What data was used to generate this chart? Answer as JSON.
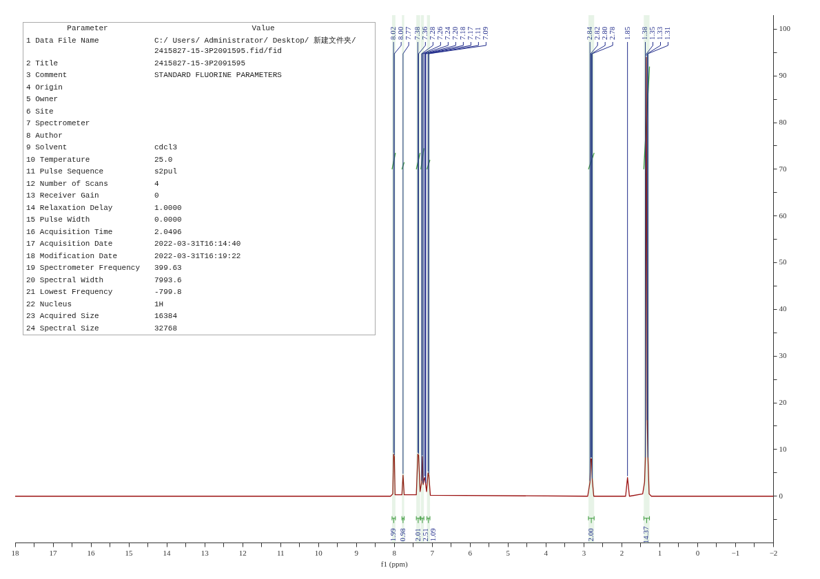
{
  "chart_data": [
    {
      "type": "other",
      "annotations": [
        "Parameter",
        "Value",
        "1 Data File Name",
        "C:/ Users/ Administrator/ Desktop/ 新建文件夹/ 2415827-15-3P2091595.fid/fid",
        "2 Title",
        "2415827-15-3P2091595",
        "3 Comment",
        "STANDARD FLUORINE PARAMETERS",
        "4 Origin",
        null,
        "5 Owner",
        null,
        "6 Site",
        null,
        "7 Spectrometer",
        null,
        "8 Author",
        null,
        "9 Solvent",
        "cdcl3",
        "10 Temperature",
        "25.0",
        "11 Pulse Sequence",
        "s2pul",
        "12 Number of Scans",
        "4",
        "13 Receiver Gain",
        "0",
        "14 Relaxation Delay",
        "1.0000",
        "15 Pulse Width",
        "0.0000",
        "16 Acquisition Time",
        "2.0496",
        "17 Acquisition Date",
        "2022-03-31T16:14:40",
        "18 Modification Date",
        "2022-03-31T16:19:22",
        "19 Spectrometer Frequency",
        "399.63",
        "20 Spectral Width",
        "7993.6",
        "21 Lowest Frequency",
        "-799.8",
        "22 Nucleus",
        "1H",
        "23 Acquired Size",
        "16384",
        "24 Spectral Size",
        "32768"
      ]
    },
    {
      "type": "line",
      "xlabel": "f1 (ppm)",
      "xlim": [
        18,
        -2
      ],
      "xticks": [
        18,
        {
          "value": 17.5,
          "label": null
        },
        17,
        {
          "value": 16.5,
          "label": null
        },
        16,
        {
          "value": 15.5,
          "label": null
        },
        15,
        {
          "value": 14.5,
          "label": null
        },
        14,
        {
          "value": 13.5,
          "label": null
        },
        13,
        {
          "value": 12.5,
          "label": null
        },
        12,
        {
          "value": 11.5,
          "label": null
        },
        11,
        {
          "value": 10.5,
          "label": null
        },
        10,
        {
          "value": 9.5,
          "label": null
        },
        9,
        {
          "value": 8.5,
          "label": null
        },
        8,
        {
          "value": 7.5,
          "label": null
        },
        7,
        {
          "value": 6.5,
          "label": null
        },
        6,
        {
          "value": 5.5,
          "label": null
        },
        5,
        {
          "value": 4.5,
          "label": null
        },
        4,
        {
          "value": 3.5,
          "label": null
        },
        3,
        {
          "value": 2.5,
          "label": null
        },
        2,
        {
          "value": 1.5,
          "label": null
        },
        1,
        {
          "value": 0.5,
          "label": null
        },
        0,
        {
          "value": -0.5,
          "label": null
        },
        {
          "value": -1,
          "label": "−1"
        },
        {
          "value": -1.5,
          "label": null
        },
        {
          "value": -2,
          "label": "−2"
        }
      ],
      "ylim": [
        -10,
        103
      ],
      "yticks": [
        {
          "value": -5,
          "label": null
        },
        0,
        {
          "value": 5,
          "label": null
        },
        10,
        {
          "value": 15,
          "label": null
        },
        20,
        {
          "value": 25,
          "label": null
        },
        30,
        {
          "value": 35,
          "label": null
        },
        40,
        {
          "value": 45,
          "label": null
        },
        50,
        {
          "value": 55,
          "label": null
        },
        60,
        {
          "value": 65,
          "label": null
        },
        70,
        {
          "value": 75,
          "label": null
        },
        80,
        {
          "value": 85,
          "label": null
        },
        90,
        {
          "value": 95,
          "label": null
        },
        100
      ],
      "grid": false,
      "legend": false,
      "marker": "none",
      "series": [
        {
          "color": "#9b1111",
          "x": [
            18,
            8.1,
            8.04,
            8.02,
            8.0,
            7.98,
            7.8,
            7.77,
            7.74,
            7.42,
            7.38,
            7.36,
            7.32,
            7.28,
            7.26,
            7.24,
            7.22,
            7.2,
            7.18,
            7.15,
            7.11,
            7.09,
            7.05,
            2.9,
            2.84,
            2.82,
            2.8,
            2.78,
            2.74,
            1.9,
            1.85,
            1.8,
            1.45,
            1.4,
            1.38,
            1.35,
            1.33,
            1.31,
            1.28,
            1.22,
            -2
          ],
          "values": [
            0,
            0,
            0.5,
            9,
            8.5,
            0.3,
            0.3,
            4.5,
            0.3,
            0.3,
            9,
            8.8,
            1,
            3,
            8.5,
            2.5,
            3.5,
            4,
            3,
            1,
            5,
            4.5,
            0.2,
            0,
            3,
            8,
            8,
            3.5,
            0,
            0,
            4,
            0,
            0.5,
            3,
            8,
            94,
            16,
            8,
            0.5,
            0,
            0
          ]
        },
        {
          "color": "#3c9a3c",
          "x": [
            8.06,
            7.97,
            7.9,
            7.8,
            7.74,
            7.6,
            7.42,
            7.32,
            7.31,
            7.3,
            7.22,
            7.18,
            7.14,
            7.06,
            5,
            2.88,
            2.73,
            2,
            1.42,
            1.27
          ],
          "values": [
            70,
            73.5,
            null,
            70,
            71.5,
            null,
            70,
            73.5,
            null,
            70,
            74.5,
            null,
            70,
            72,
            null,
            70,
            73.5,
            null,
            70,
            92
          ]
        }
      ],
      "bands": [
        {
          "axis": "x",
          "from": 8.06,
          "to": 7.97,
          "label": "1.99",
          "color": "#3c9a3c"
        },
        {
          "axis": "x",
          "from": 7.8,
          "to": 7.74,
          "label": "0.98",
          "color": "#3c9a3c"
        },
        {
          "axis": "x",
          "from": 7.42,
          "to": 7.32,
          "label": "2.01",
          "color": "#3c9a3c"
        },
        {
          "axis": "x",
          "from": 7.3,
          "to": 7.22,
          "label": "2.51",
          "color": "#3c9a3c"
        },
        {
          "axis": "x",
          "from": 7.14,
          "to": 7.06,
          "label": "1.09",
          "color": "#3c9a3c"
        },
        {
          "axis": "x",
          "from": 2.88,
          "to": 2.73,
          "label": "2.00",
          "color": "#3c9a3c"
        },
        {
          "axis": "x",
          "from": 1.42,
          "to": 1.27,
          "label": "14.37",
          "color": "#3c9a3c"
        }
      ],
      "annotations": [
        {
          "text": "8.02",
          "x": 8.02,
          "y": 9
        },
        {
          "text": "8.00",
          "x": 8.0,
          "y": 8.5
        },
        {
          "text": "7.77",
          "x": 7.77,
          "y": 4.5
        },
        {
          "text": "7.38",
          "x": 7.38,
          "y": 9
        },
        {
          "text": "7.36",
          "x": 7.36,
          "y": 8.8
        },
        {
          "text": "7.28",
          "x": 7.28,
          "y": 3
        },
        {
          "text": "7.26",
          "x": 7.26,
          "y": 8.5
        },
        {
          "text": "7.24",
          "x": 7.24,
          "y": 2.5
        },
        {
          "text": "7.20",
          "x": 7.2,
          "y": 4
        },
        {
          "text": "7.18",
          "x": 7.18,
          "y": 3
        },
        {
          "text": "7.17",
          "x": 7.17,
          "y": 2.5
        },
        {
          "text": "7.11",
          "x": 7.11,
          "y": 5
        },
        {
          "text": "7.09",
          "x": 7.09,
          "y": 4.5
        },
        {
          "text": "2.84",
          "x": 2.84,
          "y": 3
        },
        {
          "text": "2.82",
          "x": 2.82,
          "y": 8
        },
        {
          "text": "2.80",
          "x": 2.8,
          "y": 8
        },
        {
          "text": "2.78",
          "x": 2.78,
          "y": 3.5
        },
        {
          "text": "1.85",
          "x": 1.85,
          "y": 4
        },
        {
          "text": "1.38",
          "x": 1.38,
          "y": 8
        },
        {
          "text": "1.35",
          "x": 1.35,
          "y": 94
        },
        {
          "text": "1.33",
          "x": 1.33,
          "y": 16
        },
        {
          "text": "1.31",
          "x": 1.31,
          "y": 8
        }
      ]
    }
  ]
}
